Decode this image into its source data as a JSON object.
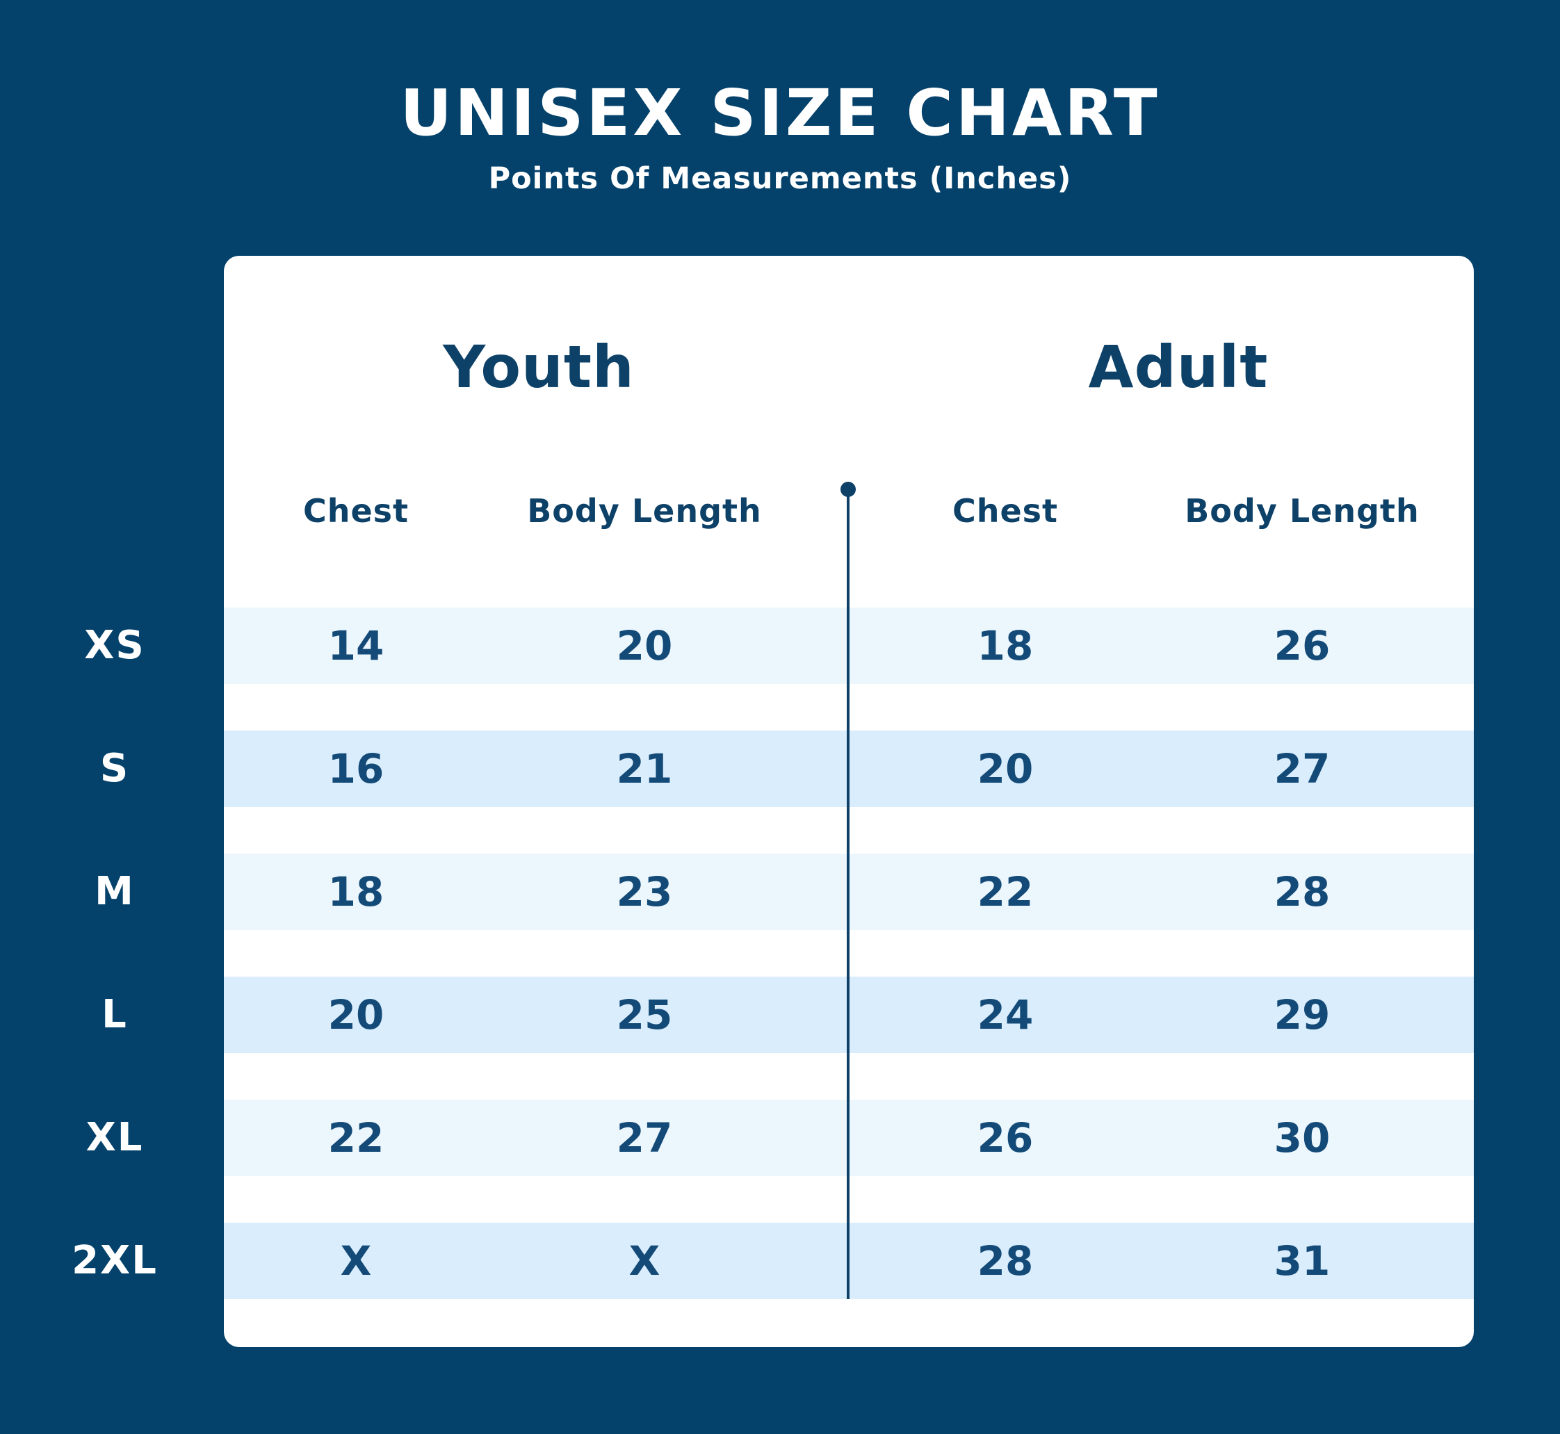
{
  "header": {
    "title": "UNISEX SIZE CHART",
    "subtitle": "Points Of Measurements (Inches)"
  },
  "chart_data": {
    "type": "table",
    "title": "UNISEX SIZE CHART",
    "subtitle": "Points Of Measurements (Inches)",
    "units": "Inches",
    "groups": [
      "Youth",
      "Adult"
    ],
    "columns": [
      "Chest",
      "Body Length",
      "Chest",
      "Body Length"
    ],
    "rows": [
      {
        "size": "XS",
        "youth": {
          "chest": "14",
          "body_length": "20"
        },
        "adult": {
          "chest": "18",
          "body_length": "26"
        }
      },
      {
        "size": "S",
        "youth": {
          "chest": "16",
          "body_length": "21"
        },
        "adult": {
          "chest": "20",
          "body_length": "27"
        }
      },
      {
        "size": "M",
        "youth": {
          "chest": "18",
          "body_length": "23"
        },
        "adult": {
          "chest": "22",
          "body_length": "28"
        }
      },
      {
        "size": "L",
        "youth": {
          "chest": "20",
          "body_length": "25"
        },
        "adult": {
          "chest": "24",
          "body_length": "29"
        }
      },
      {
        "size": "XL",
        "youth": {
          "chest": "22",
          "body_length": "27"
        },
        "adult": {
          "chest": "26",
          "body_length": "30"
        }
      },
      {
        "size": "2XL",
        "youth": {
          "chest": "X",
          "body_length": "X"
        },
        "adult": {
          "chest": "28",
          "body_length": "31"
        }
      }
    ]
  },
  "colors": {
    "background": "#04426B",
    "card": "#FFFFFF",
    "stripe_light": "#ECF6FD",
    "stripe_dark": "#D9EDFC",
    "text_navy": "#0D4168",
    "cell_navy": "#134A77",
    "text_white": "#FFFFFF"
  }
}
